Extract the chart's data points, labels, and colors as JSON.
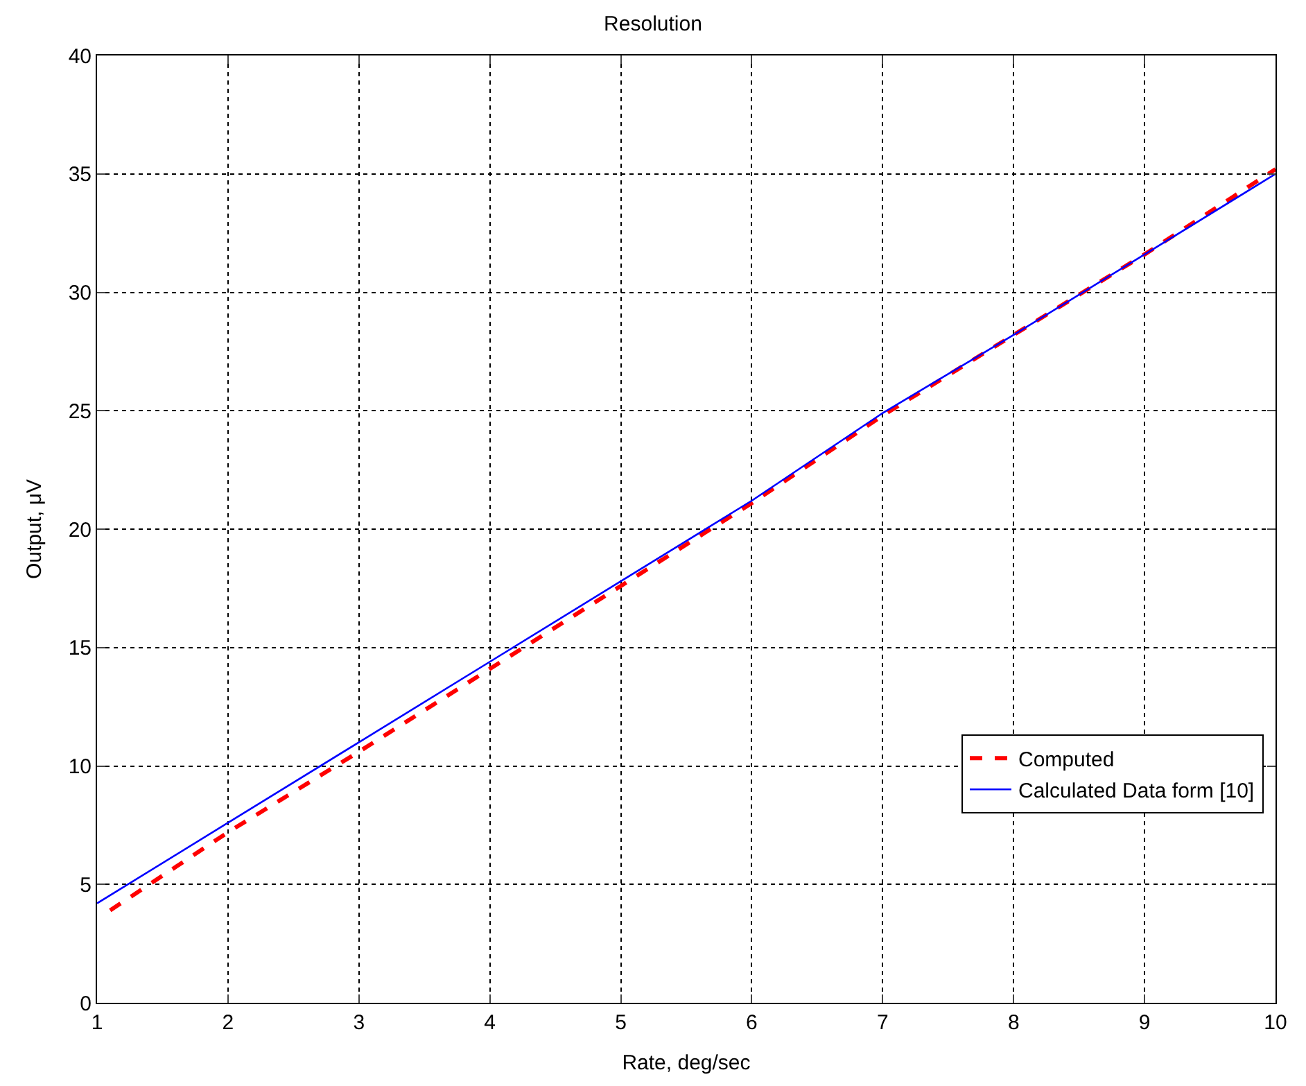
{
  "chart_data": {
    "type": "line",
    "title": "Resolution",
    "xlabel": "Rate, deg/sec",
    "ylabel": "Output, μV",
    "xlim": [
      1,
      10
    ],
    "xticks": [
      1,
      2,
      3,
      4,
      5,
      6,
      7,
      8,
      9,
      10
    ],
    "ylim": [
      0,
      40
    ],
    "yticks": [
      0,
      5,
      10,
      15,
      20,
      25,
      30,
      35,
      40
    ],
    "grid": true,
    "legend": "bottom right",
    "series": [
      {
        "name": "Computed",
        "color": "#ff0000",
        "line_style": "dashed",
        "x": [
          1.1,
          2,
          3,
          4,
          5,
          6,
          7,
          8,
          9,
          10
        ],
        "values": [
          3.9,
          7.2,
          10.6,
          14.1,
          17.6,
          21.1,
          24.8,
          28.2,
          31.6,
          35.2
        ]
      },
      {
        "name": "Calculated Data form [10]",
        "color": "#0000ff",
        "line_style": "solid",
        "x": [
          1,
          2,
          3,
          4,
          5,
          6,
          7,
          8,
          9,
          10
        ],
        "values": [
          4.2,
          7.6,
          11.0,
          14.4,
          17.8,
          21.2,
          24.9,
          28.2,
          31.6,
          35.0
        ]
      }
    ]
  }
}
